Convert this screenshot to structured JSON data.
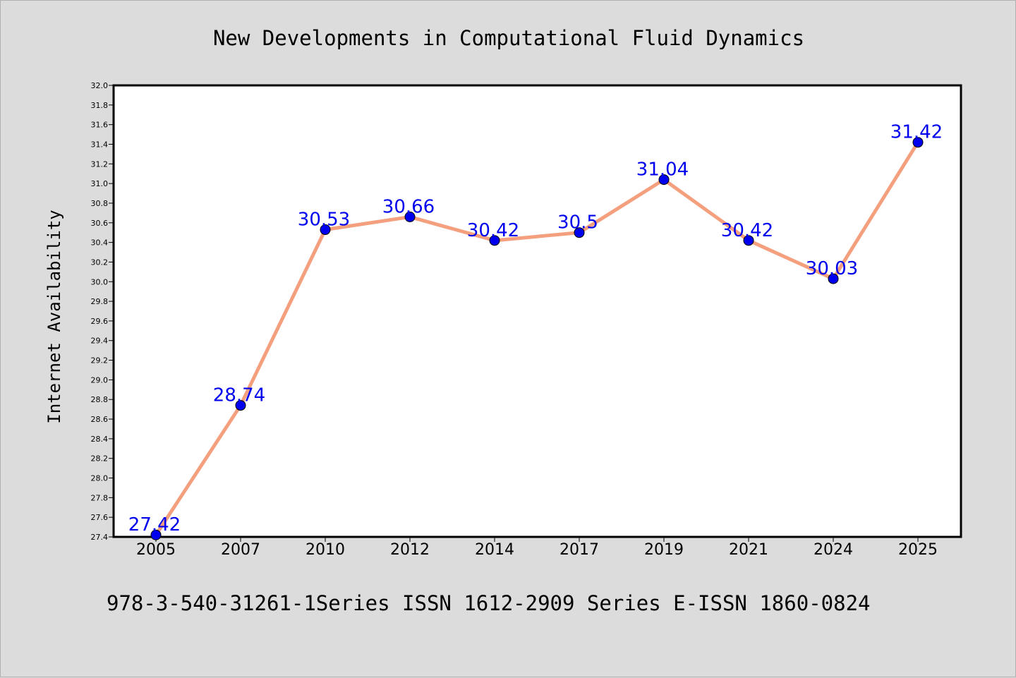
{
  "chart_data": {
    "type": "line",
    "title": "New Developments in Computational Fluid Dynamics",
    "ylabel": "Internet Availability",
    "xlabel": "",
    "categories": [
      "2005",
      "2007",
      "2010",
      "2012",
      "2014",
      "2017",
      "2019",
      "2021",
      "2024",
      "2025"
    ],
    "series": [
      {
        "values": [
          27.42,
          28.74,
          30.53,
          30.66,
          30.42,
          30.5,
          31.04,
          30.42,
          30.03,
          31.42
        ],
        "labels": [
          "27.42",
          "28.74",
          "30.53",
          "30.66",
          "30.42",
          "30.5",
          "31.04",
          "30.42",
          "30.03",
          "31.42"
        ]
      }
    ],
    "ylim": [
      27.4,
      32.0
    ],
    "yticks": [
      "27.4",
      "27.6",
      "27.8",
      "28.0",
      "28.2",
      "28.4",
      "28.6",
      "28.8",
      "29.0",
      "29.2",
      "29.4",
      "29.6",
      "29.8",
      "30.0",
      "30.2",
      "30.4",
      "30.6",
      "30.8",
      "31.0",
      "31.2",
      "31.4",
      "31.6",
      "31.8",
      "32.0"
    ],
    "grid": false,
    "legend": "none",
    "footnote": "978-3-540-31261-1Series ISSN 1612-2909 Series E-ISSN 1860-0824",
    "colors": {
      "line": "#f4a07e",
      "marker": "#0000ee",
      "label": "#0000ee",
      "background": "#dcdcdc",
      "plot_area": "#ffffff"
    }
  }
}
